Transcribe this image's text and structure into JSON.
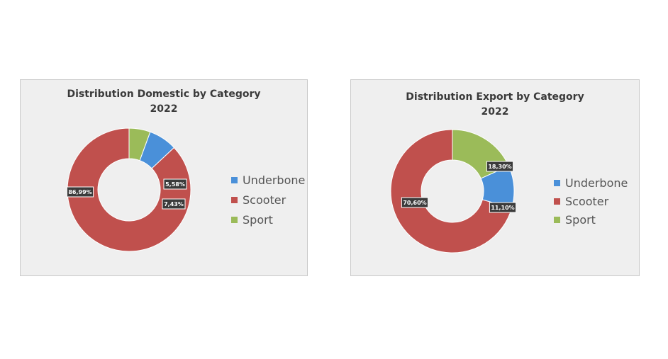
{
  "chart_data": [
    {
      "type": "pie",
      "title": "Distribution Domestic by Category",
      "subtitle": "2022",
      "series": [
        {
          "name": "Underbone",
          "value": 7.43,
          "label": "7,43%",
          "color": "#4a90d9"
        },
        {
          "name": "Scooter",
          "value": 86.99,
          "label": "86,99%",
          "color": "#c0504d"
        },
        {
          "name": "Sport",
          "value": 5.58,
          "label": "5,58%",
          "color": "#9bbb59"
        }
      ],
      "legend": "right"
    },
    {
      "type": "pie",
      "title": "Distribution Export by Category",
      "subtitle": "2022",
      "series": [
        {
          "name": "Underbone",
          "value": 11.1,
          "label": "11,10%",
          "color": "#4a90d9"
        },
        {
          "name": "Scooter",
          "value": 70.6,
          "label": "70,60%",
          "color": "#c0504d"
        },
        {
          "name": "Sport",
          "value": 18.3,
          "label": "18,30%",
          "color": "#9bbb59"
        }
      ],
      "legend": "right"
    }
  ]
}
